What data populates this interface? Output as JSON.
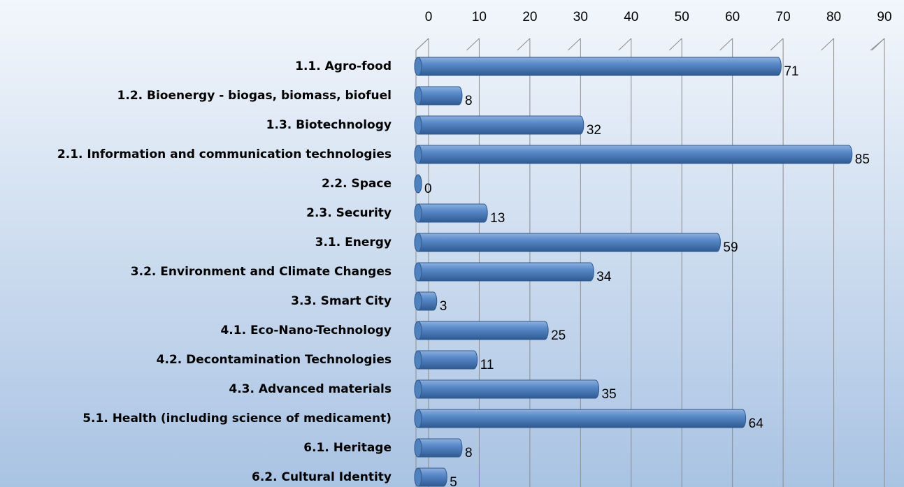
{
  "chart_data": {
    "type": "bar",
    "orientation": "horizontal",
    "categories": [
      "1.1. Agro-food",
      "1.2. Bioenergy - biogas, biomass, biofuel",
      "1.3. Biotechnology",
      "2.1. Information and communication technologies",
      "2.2. Space",
      "2.3. Security",
      "3.1. Energy",
      "3.2. Environment and Climate Changes",
      "3.3. Smart City",
      "4.1. Eco-Nano-Technology",
      "4.2. Decontamination Technologies",
      "4.3. Advanced materials",
      "5.1. Health (including science of medicament)",
      "6.1. Heritage",
      "6.2. Cultural Identity"
    ],
    "values": [
      71,
      8,
      32,
      85,
      0,
      13,
      59,
      34,
      3,
      25,
      11,
      35,
      64,
      8,
      5
    ],
    "color": "#4f81bd",
    "xlim": [
      0,
      90
    ],
    "xticks": [
      0,
      10,
      20,
      30,
      40,
      50,
      60,
      70,
      80,
      90
    ],
    "grid": true
  }
}
